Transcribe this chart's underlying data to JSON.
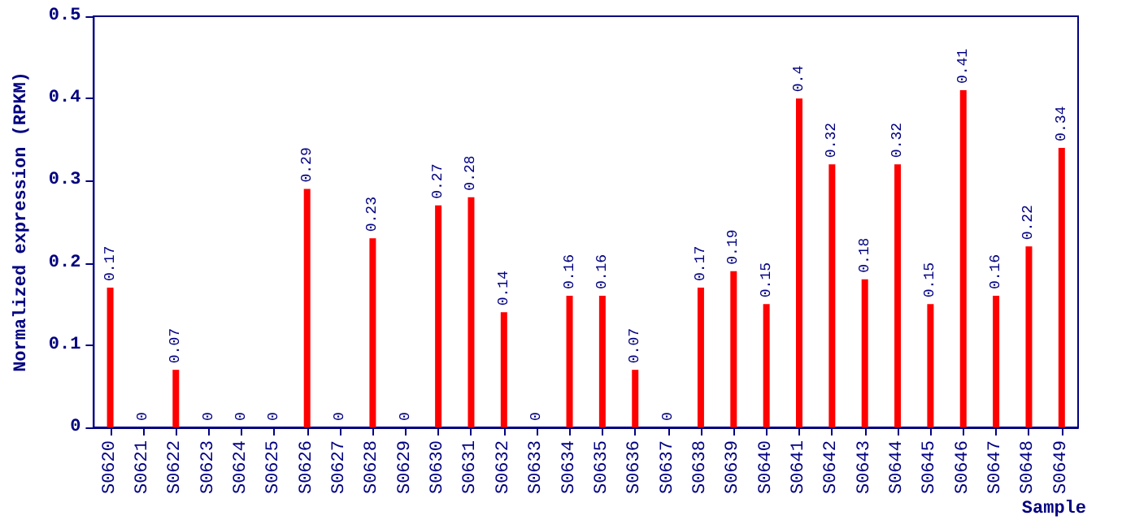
{
  "chart_data": {
    "type": "bar",
    "xlabel": "Sample",
    "ylabel": "Normalized expression (RPKM)",
    "categories": [
      "S0620",
      "S0621",
      "S0622",
      "S0623",
      "S0624",
      "S0625",
      "S0626",
      "S0627",
      "S0628",
      "S0629",
      "S0630",
      "S0631",
      "S0632",
      "S0633",
      "S0634",
      "S0635",
      "S0636",
      "S0637",
      "S0638",
      "S0639",
      "S0640",
      "S0641",
      "S0642",
      "S0643",
      "S0644",
      "S0645",
      "S0646",
      "S0647",
      "S0648",
      "S0649"
    ],
    "values": [
      0.17,
      0,
      0.07,
      0,
      0,
      0,
      0.29,
      0,
      0.23,
      0,
      0.27,
      0.28,
      0.14,
      0,
      0.16,
      0.16,
      0.07,
      0,
      0.17,
      0.19,
      0.15,
      0.4,
      0.32,
      0.18,
      0.32,
      0.15,
      0.41,
      0.16,
      0.22,
      0.34
    ],
    "color": "#ff0000",
    "ylim": [
      0,
      0.5
    ],
    "yticks": [
      0,
      0.1,
      0.2,
      0.3,
      0.4,
      0.5
    ],
    "data_labels": true,
    "grid": false
  }
}
